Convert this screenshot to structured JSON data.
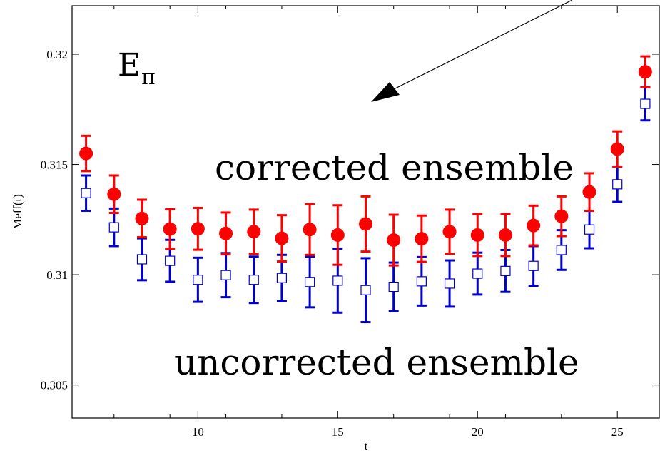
{
  "chart_data": {
    "type": "scatter",
    "title": "",
    "xlabel": "t",
    "ylabel": "Meff(t)",
    "xlim": [
      5.5,
      26.5
    ],
    "ylim": [
      0.3035,
      0.3222
    ],
    "x_ticks": [
      10,
      15,
      20,
      25
    ],
    "x_tick_labels": [
      "10",
      "15",
      "20",
      "25"
    ],
    "x_minor_ticks": [
      7,
      9,
      11,
      13,
      17,
      19,
      21,
      23
    ],
    "y_ticks": [
      0.305,
      0.31,
      0.315,
      0.32
    ],
    "y_tick_labels": [
      "0.305",
      "0.31",
      "0.315",
      "0.32"
    ],
    "grid": false,
    "legend": null,
    "series": [
      {
        "marker": "filled-circle",
        "color": "#ff0000",
        "x": [
          6,
          7,
          8,
          9,
          10,
          11,
          12,
          13,
          14,
          15,
          16,
          17,
          18,
          19,
          20,
          21,
          22,
          23,
          24,
          25,
          26
        ],
        "y": [
          0.3155,
          0.31365,
          0.31255,
          0.31207,
          0.31208,
          0.31187,
          0.31195,
          0.31165,
          0.31205,
          0.3118,
          0.3123,
          0.31157,
          0.31163,
          0.31195,
          0.3118,
          0.3118,
          0.31223,
          0.31265,
          0.31375,
          0.3157,
          0.3192
        ],
        "err": [
          0.0008,
          0.00085,
          0.00085,
          0.0009,
          0.00095,
          0.00095,
          0.001,
          0.00105,
          0.00115,
          0.00135,
          0.00125,
          0.00115,
          0.00105,
          0.001,
          0.00095,
          0.00095,
          0.0009,
          0.0009,
          0.00085,
          0.0008,
          0.0007
        ]
      },
      {
        "marker": "open-square",
        "color": "#0000cc",
        "x": [
          6,
          7,
          8,
          9,
          10,
          11,
          12,
          13,
          14,
          15,
          16,
          17,
          18,
          19,
          20,
          21,
          22,
          23,
          24,
          25,
          26
        ],
        "y": [
          0.3137,
          0.31215,
          0.3107,
          0.31063,
          0.30977,
          0.30998,
          0.30977,
          0.30985,
          0.30967,
          0.30973,
          0.3093,
          0.30945,
          0.3097,
          0.3096,
          0.31005,
          0.31017,
          0.3104,
          0.31112,
          0.31205,
          0.3141,
          0.31775
        ],
        "err": [
          0.0008,
          0.00085,
          0.00095,
          0.00095,
          0.001,
          0.001,
          0.00105,
          0.00105,
          0.00115,
          0.00145,
          0.00145,
          0.0011,
          0.0011,
          0.00105,
          0.00095,
          0.00095,
          0.0009,
          0.0009,
          0.00085,
          0.0008,
          0.00075
        ]
      }
    ],
    "annotations": {
      "e_pi_main": "E",
      "e_pi_sub": "π",
      "corrected_label": "corrected ensemble",
      "uncorrected_label": "uncorrected ensemble"
    }
  }
}
